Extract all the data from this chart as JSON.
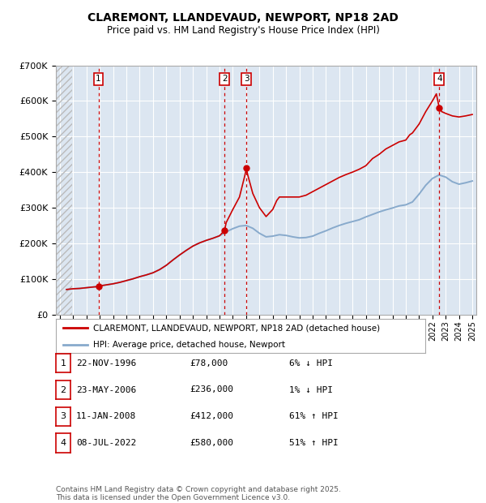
{
  "title": "CLAREMONT, LLANDEVAUD, NEWPORT, NP18 2AD",
  "subtitle": "Price paid vs. HM Land Registry's House Price Index (HPI)",
  "ylim": [
    0,
    700000
  ],
  "yticks": [
    0,
    100000,
    200000,
    300000,
    400000,
    500000,
    600000,
    700000
  ],
  "ytick_labels": [
    "£0",
    "£100K",
    "£200K",
    "£300K",
    "£400K",
    "£500K",
    "£600K",
    "£700K"
  ],
  "xlim_start": 1993.7,
  "xlim_end": 2025.3,
  "hatch_end": 1994.92,
  "background_color": "#dce6f1",
  "grid_color": "#ffffff",
  "red_line_color": "#cc0000",
  "blue_line_color": "#88aacc",
  "transaction_dates_year": [
    1996.9,
    2006.38,
    2008.03,
    2022.52
  ],
  "transaction_prices": [
    78000,
    236000,
    412000,
    580000
  ],
  "transaction_labels": [
    "1",
    "2",
    "3",
    "4"
  ],
  "legend_line1": "CLAREMONT, LLANDEVAUD, NEWPORT, NP18 2AD (detached house)",
  "legend_line2": "HPI: Average price, detached house, Newport",
  "table_entries": [
    {
      "num": "1",
      "date": "22-NOV-1996",
      "price": "£78,000",
      "hpi": "6% ↓ HPI"
    },
    {
      "num": "2",
      "date": "23-MAY-2006",
      "price": "£236,000",
      "hpi": "1% ↓ HPI"
    },
    {
      "num": "3",
      "date": "11-JAN-2008",
      "price": "£412,000",
      "hpi": "61% ↑ HPI"
    },
    {
      "num": "4",
      "date": "08-JUL-2022",
      "price": "£580,000",
      "hpi": "51% ↑ HPI"
    }
  ],
  "footer": "Contains HM Land Registry data © Crown copyright and database right 2025.\nThis data is licensed under the Open Government Licence v3.0.",
  "hpi_years": [
    1994.5,
    1995.0,
    1995.5,
    1996.0,
    1996.5,
    1997.0,
    1997.5,
    1998.0,
    1998.5,
    1999.0,
    1999.5,
    2000.0,
    2000.5,
    2001.0,
    2001.5,
    2002.0,
    2002.5,
    2003.0,
    2003.5,
    2004.0,
    2004.5,
    2005.0,
    2005.5,
    2006.0,
    2006.5,
    2007.0,
    2007.5,
    2008.0,
    2008.5,
    2009.0,
    2009.5,
    2010.0,
    2010.5,
    2011.0,
    2011.5,
    2012.0,
    2012.5,
    2013.0,
    2013.5,
    2014.0,
    2014.5,
    2015.0,
    2015.5,
    2016.0,
    2016.5,
    2017.0,
    2017.5,
    2018.0,
    2018.5,
    2019.0,
    2019.5,
    2020.0,
    2020.5,
    2021.0,
    2021.5,
    2022.0,
    2022.5,
    2023.0,
    2023.5,
    2024.0,
    2024.5,
    2025.0
  ],
  "hpi_vals": [
    70000,
    72000,
    73000,
    75000,
    77000,
    80000,
    83000,
    86000,
    90000,
    95000,
    100000,
    106000,
    111000,
    117000,
    126000,
    138000,
    153000,
    167000,
    180000,
    192000,
    201000,
    208000,
    214000,
    221000,
    232000,
    241000,
    248000,
    250000,
    242000,
    228000,
    218000,
    220000,
    224000,
    222000,
    218000,
    215000,
    216000,
    220000,
    228000,
    235000,
    243000,
    250000,
    256000,
    261000,
    266000,
    274000,
    281000,
    288000,
    294000,
    299000,
    305000,
    308000,
    316000,
    338000,
    363000,
    382000,
    392000,
    386000,
    373000,
    366000,
    370000,
    375000
  ],
  "red_years": [
    1994.5,
    1995.0,
    1995.5,
    1996.0,
    1996.5,
    1996.9,
    1997.0,
    1997.5,
    1998.0,
    1998.5,
    1999.0,
    1999.5,
    2000.0,
    2000.5,
    2001.0,
    2001.5,
    2002.0,
    2002.5,
    2003.0,
    2003.5,
    2004.0,
    2004.5,
    2005.0,
    2005.5,
    2006.0,
    2006.38,
    2006.5,
    2007.0,
    2007.5,
    2007.9,
    2008.03,
    2008.1,
    2008.5,
    2009.0,
    2009.5,
    2010.0,
    2010.3,
    2010.5,
    2011.0,
    2011.5,
    2012.0,
    2012.5,
    2013.0,
    2013.5,
    2014.0,
    2014.5,
    2015.0,
    2015.5,
    2016.0,
    2016.5,
    2017.0,
    2017.3,
    2017.5,
    2018.0,
    2018.5,
    2019.0,
    2019.5,
    2020.0,
    2020.3,
    2020.5,
    2021.0,
    2021.5,
    2022.0,
    2022.3,
    2022.52,
    2022.7,
    2023.0,
    2023.5,
    2024.0,
    2024.5,
    2025.0
  ],
  "red_vals": [
    70000,
    72000,
    73000,
    75000,
    77000,
    78000,
    80000,
    83000,
    86000,
    90000,
    95000,
    100000,
    106000,
    111000,
    117000,
    126000,
    138000,
    153000,
    167000,
    180000,
    192000,
    201000,
    208000,
    214000,
    221000,
    236000,
    258000,
    295000,
    330000,
    390000,
    412000,
    395000,
    340000,
    300000,
    275000,
    295000,
    320000,
    330000,
    330000,
    330000,
    330000,
    335000,
    345000,
    355000,
    365000,
    375000,
    385000,
    393000,
    400000,
    408000,
    418000,
    430000,
    438000,
    450000,
    465000,
    475000,
    485000,
    490000,
    505000,
    510000,
    535000,
    570000,
    600000,
    620000,
    580000,
    570000,
    565000,
    558000,
    555000,
    558000,
    562000
  ]
}
